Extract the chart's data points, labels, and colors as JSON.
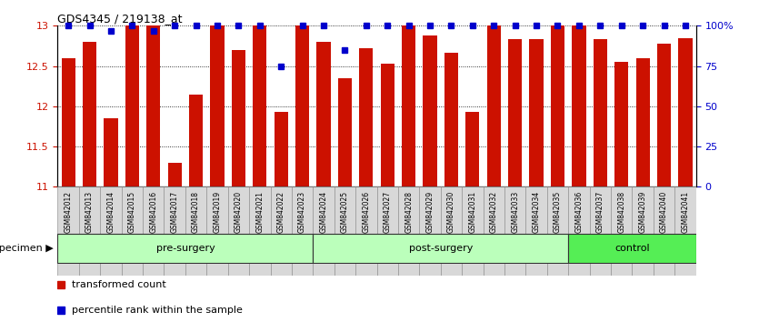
{
  "title": "GDS4345 / 219138_at",
  "samples": [
    "GSM842012",
    "GSM842013",
    "GSM842014",
    "GSM842015",
    "GSM842016",
    "GSM842017",
    "GSM842018",
    "GSM842019",
    "GSM842020",
    "GSM842021",
    "GSM842022",
    "GSM842023",
    "GSM842024",
    "GSM842025",
    "GSM842026",
    "GSM842027",
    "GSM842028",
    "GSM842029",
    "GSM842030",
    "GSM842031",
    "GSM842032",
    "GSM842033",
    "GSM842034",
    "GSM842035",
    "GSM842036",
    "GSM842037",
    "GSM842038",
    "GSM842039",
    "GSM842040",
    "GSM842041"
  ],
  "red_values": [
    12.6,
    12.8,
    11.85,
    13.0,
    13.0,
    11.3,
    12.15,
    13.0,
    12.7,
    13.0,
    11.93,
    13.0,
    12.8,
    12.35,
    12.72,
    12.53,
    13.0,
    12.88,
    12.67,
    11.93,
    13.0,
    12.83,
    12.83,
    13.0,
    13.0,
    12.83,
    12.55,
    12.6,
    12.78,
    12.85
  ],
  "blue_values": [
    100,
    100,
    100,
    100,
    100,
    100,
    100,
    100,
    100,
    100,
    100,
    100,
    100,
    100,
    100,
    100,
    100,
    100,
    100,
    100,
    100,
    100,
    100,
    100,
    100,
    100,
    100,
    100,
    100,
    100
  ],
  "blue_overrides": {
    "2": 97,
    "4": 97,
    "10": 75,
    "13": 85
  },
  "ylim_left": [
    11,
    13
  ],
  "ylim_right": [
    0,
    100
  ],
  "yticks_left": [
    11,
    11.5,
    12,
    12.5,
    13
  ],
  "yticks_right": [
    0,
    25,
    50,
    75,
    100
  ],
  "bar_color": "#cc1100",
  "dot_color": "#0000cc",
  "bg_color": "#ffffff",
  "group_defs": [
    {
      "label": "pre-surgery",
      "start": 0,
      "end": 11,
      "color": "#bbffbb"
    },
    {
      "label": "post-surgery",
      "start": 12,
      "end": 23,
      "color": "#bbffbb"
    },
    {
      "label": "control",
      "start": 24,
      "end": 29,
      "color": "#55ee55"
    }
  ],
  "legend_items": [
    {
      "label": "transformed count",
      "color": "#cc1100"
    },
    {
      "label": "percentile rank within the sample",
      "color": "#0000cc"
    }
  ]
}
